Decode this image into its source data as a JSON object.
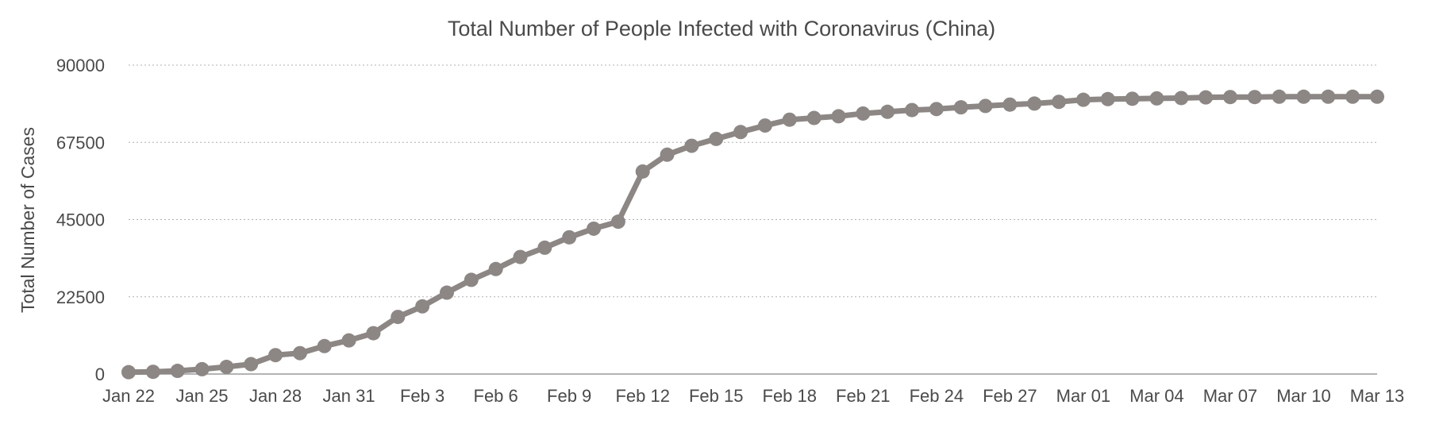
{
  "chart_data": {
    "type": "line",
    "title": "Total Number of People Infected with Coronavirus (China)",
    "xlabel": "",
    "ylabel": "Total Number of Cases",
    "ylim": [
      0,
      90000
    ],
    "y_ticks": [
      "0",
      "22500",
      "45000",
      "67500",
      "90000"
    ],
    "x_tick_labels": [
      "Jan 22",
      "Jan 25",
      "Jan 28",
      "Jan 31",
      "Feb 3",
      "Feb 6",
      "Feb 9",
      "Feb 12",
      "Feb 15",
      "Feb 18",
      "Feb 21",
      "Feb 24",
      "Feb 27",
      "Mar 01",
      "Mar 04",
      "Mar 07",
      "Mar 10",
      "Mar 13"
    ],
    "grid": true,
    "line_color": "#8c8784",
    "x": [
      "Jan 22",
      "Jan 23",
      "Jan 24",
      "Jan 25",
      "Jan 26",
      "Jan 27",
      "Jan 28",
      "Jan 29",
      "Jan 30",
      "Jan 31",
      "Feb 1",
      "Feb 2",
      "Feb 3",
      "Feb 4",
      "Feb 5",
      "Feb 6",
      "Feb 7",
      "Feb 8",
      "Feb 9",
      "Feb 10",
      "Feb 11",
      "Feb 12",
      "Feb 13",
      "Feb 14",
      "Feb 15",
      "Feb 16",
      "Feb 17",
      "Feb 18",
      "Feb 19",
      "Feb 20",
      "Feb 21",
      "Feb 22",
      "Feb 23",
      "Feb 24",
      "Feb 25",
      "Feb 26",
      "Feb 27",
      "Feb 28",
      "Feb 29",
      "Mar 01",
      "Mar 02",
      "Mar 03",
      "Mar 04",
      "Mar 05",
      "Mar 06",
      "Mar 07",
      "Mar 08",
      "Mar 09",
      "Mar 10",
      "Mar 11",
      "Mar 12",
      "Mar 13"
    ],
    "values": [
      548,
      643,
      920,
      1406,
      2075,
      2877,
      5509,
      6087,
      8141,
      9802,
      11891,
      16630,
      19716,
      23707,
      27440,
      30587,
      34110,
      36814,
      39829,
      42354,
      44386,
      59000,
      63900,
      66500,
      68500,
      70500,
      72400,
      74100,
      74600,
      75100,
      75900,
      76400,
      76900,
      77200,
      77700,
      78100,
      78500,
      78800,
      79300,
      79900,
      80100,
      80200,
      80300,
      80400,
      80600,
      80700,
      80700,
      80800,
      80800,
      80800,
      80800,
      80800
    ]
  }
}
